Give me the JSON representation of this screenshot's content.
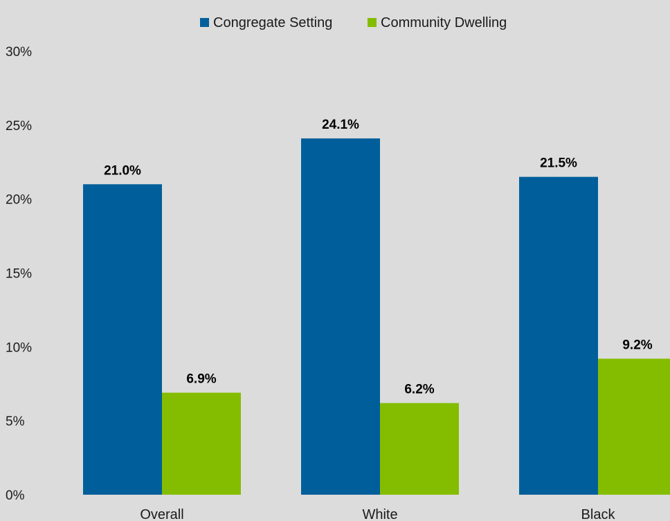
{
  "chart_data": {
    "type": "bar",
    "categories": [
      "Overall",
      "White",
      "Black"
    ],
    "series": [
      {
        "name": "Congregate Setting",
        "values": [
          21.0,
          24.1,
          21.5
        ],
        "labels": [
          "21.0%",
          "24.1%",
          "21.5%"
        ],
        "color": "#005f9a"
      },
      {
        "name": "Community Dwelling",
        "values": [
          6.9,
          6.2,
          9.2
        ],
        "labels": [
          "6.9%",
          "6.2%",
          "9.2%"
        ],
        "color": "#84bd00"
      }
    ],
    "ylim": [
      0,
      30
    ],
    "yticks": [
      0,
      5,
      10,
      15,
      20,
      25,
      30
    ],
    "ytick_labels": [
      "0%",
      "5%",
      "10%",
      "15%",
      "20%",
      "25%",
      "30%"
    ],
    "grid": false,
    "legend_position": "top-center",
    "background": "#dcdcdc"
  }
}
